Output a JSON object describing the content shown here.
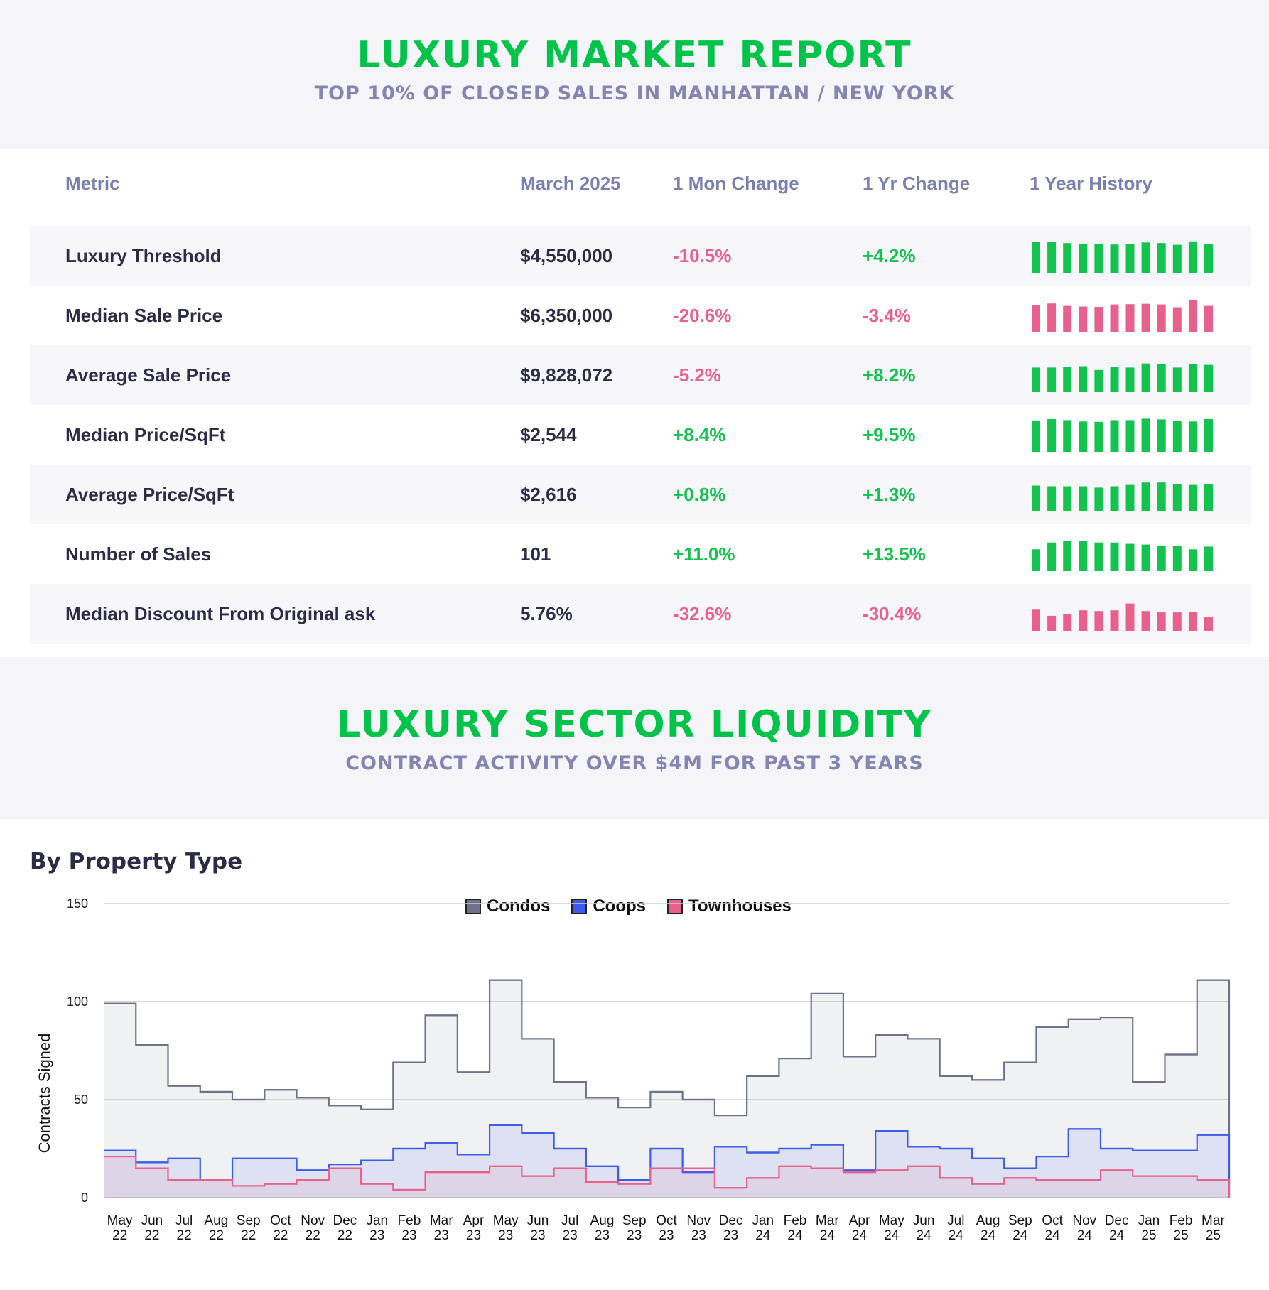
{
  "header": {
    "title": "LUXURY MARKET REPORT",
    "subtitle": "TOP 10% OF CLOSED SALES IN MANHATTAN / NEW YORK"
  },
  "table": {
    "columns": [
      "Metric",
      "March 2025",
      "1 Mon Change",
      "1 Yr Change",
      "1 Year History"
    ],
    "rows": [
      {
        "metric": "Luxury Threshold",
        "value": "$4,550,000",
        "mon": "-10.5%",
        "yr": "+4.2%",
        "trend": "pos",
        "history": [
          0.91,
          0.91,
          0.87,
          0.85,
          0.84,
          0.83,
          0.85,
          0.89,
          0.87,
          0.82,
          0.92,
          0.85
        ]
      },
      {
        "metric": "Median Sale Price",
        "value": "$6,350,000",
        "mon": "-20.6%",
        "yr": "-3.4%",
        "trend": "neg",
        "history": [
          0.8,
          0.85,
          0.78,
          0.76,
          0.75,
          0.82,
          0.83,
          0.84,
          0.82,
          0.74,
          0.95,
          0.78
        ]
      },
      {
        "metric": "Average Sale Price",
        "value": "$9,828,072",
        "mon": "-5.2%",
        "yr": "+8.2%",
        "trend": "pos",
        "history": [
          0.72,
          0.72,
          0.74,
          0.76,
          0.65,
          0.73,
          0.72,
          0.84,
          0.82,
          0.72,
          0.82,
          0.8
        ]
      },
      {
        "metric": "Median Price/SqFt",
        "value": "$2,544",
        "mon": "+8.4%",
        "yr": "+9.5%",
        "trend": "pos",
        "history": [
          0.92,
          0.96,
          0.93,
          0.89,
          0.88,
          0.93,
          0.93,
          0.97,
          0.95,
          0.9,
          0.89,
          0.96
        ]
      },
      {
        "metric": "Average Price/SqFt",
        "value": "$2,616",
        "mon": "+0.8%",
        "yr": "+1.3%",
        "trend": "pos",
        "history": [
          0.76,
          0.74,
          0.74,
          0.74,
          0.7,
          0.74,
          0.78,
          0.85,
          0.85,
          0.8,
          0.78,
          0.8
        ]
      },
      {
        "metric": "Number of Sales",
        "value": "101",
        "mon": "+11.0%",
        "yr": "+13.5%",
        "trend": "pos",
        "history": [
          0.64,
          0.84,
          0.88,
          0.88,
          0.84,
          0.84,
          0.8,
          0.78,
          0.75,
          0.74,
          0.64,
          0.72
        ]
      },
      {
        "metric": "Median Discount From Original ask",
        "value": "5.76%",
        "mon": "-32.6%",
        "yr": "-30.4%",
        "trend": "neg",
        "history": [
          0.62,
          0.44,
          0.5,
          0.6,
          0.58,
          0.6,
          0.8,
          0.58,
          0.54,
          0.54,
          0.56,
          0.4
        ]
      }
    ]
  },
  "section2": {
    "title": "LUXURY SECTOR LIQUIDITY",
    "subtitle": "CONTRACT ACTIVITY OVER $4M FOR PAST 3 YEARS",
    "heading": "By Property Type"
  },
  "colors": {
    "green": "#14c24e",
    "pink": "#e8618c",
    "condos": "#6e7288",
    "coops": "#3d5bea",
    "townhouses": "#e8618c"
  },
  "chart_data": {
    "type": "area",
    "step": true,
    "ylabel": "Contracts Signed",
    "ylim": [
      0,
      150
    ],
    "yticks": [
      0,
      50,
      100,
      150
    ],
    "grid": true,
    "legend_position": "top-center",
    "x": [
      "May 22",
      "Jun 22",
      "Jul 22",
      "Aug 22",
      "Sep 22",
      "Oct 22",
      "Nov 22",
      "Dec 22",
      "Jan 23",
      "Feb 23",
      "Mar 23",
      "Apr 23",
      "May 23",
      "Jun 23",
      "Jul 23",
      "Aug 23",
      "Sep 23",
      "Oct 23",
      "Nov 23",
      "Dec 23",
      "Jan 24",
      "Feb 24",
      "Mar 24",
      "Apr 24",
      "May 24",
      "Jun 24",
      "Jul 24",
      "Aug 24",
      "Sep 24",
      "Oct 24",
      "Nov 24",
      "Dec 24",
      "Jan 25",
      "Feb 25",
      "Mar 25"
    ],
    "series": [
      {
        "name": "Condos",
        "values": [
          99,
          78,
          57,
          54,
          50,
          55,
          51,
          47,
          45,
          69,
          93,
          64,
          111,
          81,
          59,
          51,
          46,
          54,
          50,
          42,
          62,
          71,
          104,
          72,
          83,
          81,
          62,
          60,
          69,
          87,
          91,
          92,
          59,
          73,
          111
        ]
      },
      {
        "name": "Coops",
        "values": [
          24,
          18,
          20,
          9,
          20,
          20,
          14,
          17,
          19,
          25,
          28,
          22,
          37,
          33,
          25,
          16,
          9,
          25,
          13,
          26,
          23,
          25,
          27,
          14,
          34,
          26,
          25,
          20,
          15,
          21,
          35,
          25,
          24,
          24,
          32
        ]
      },
      {
        "name": "Townhouses",
        "values": [
          21,
          15,
          9,
          9,
          6,
          7,
          9,
          15,
          7,
          4,
          13,
          13,
          16,
          11,
          15,
          8,
          7,
          15,
          15,
          5,
          10,
          16,
          15,
          13,
          14,
          16,
          10,
          7,
          10,
          9,
          9,
          14,
          11,
          11,
          9
        ]
      }
    ]
  }
}
